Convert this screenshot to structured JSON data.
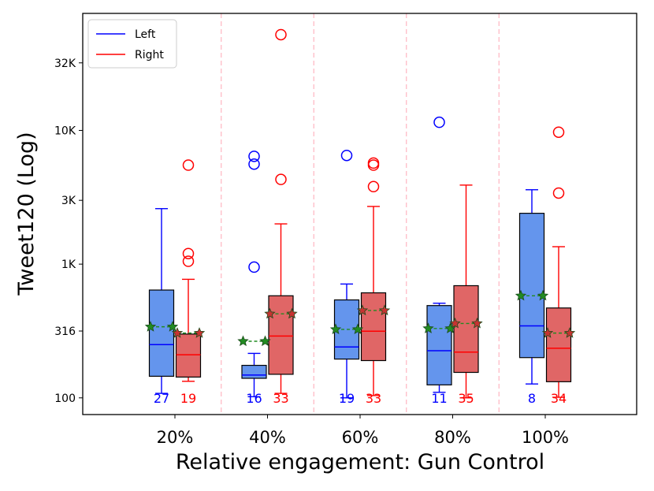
{
  "chart_data": {
    "type": "box",
    "xlabel": "Relative engagement: Gun Control",
    "ylabel": "Tweet120 (Log)",
    "yscale": "log",
    "ylim": [
      75,
      75000
    ],
    "categories": [
      "20%",
      "40%",
      "60%",
      "80%",
      "100%"
    ],
    "y_ticks": [
      {
        "value": 100,
        "label": "100"
      },
      {
        "value": 316,
        "label": "316"
      },
      {
        "value": 1000,
        "label": "1K"
      },
      {
        "value": 3000,
        "label": "3K"
      },
      {
        "value": 10000,
        "label": "10K"
      },
      {
        "value": 32000,
        "label": "32K"
      }
    ],
    "legend": {
      "location": "top-left",
      "entries": [
        {
          "label": "Left",
          "color": "#0000ff"
        },
        {
          "label": "Right",
          "color": "#ff0000"
        }
      ]
    },
    "series": [
      {
        "name": "Left",
        "line_color": "#0000ff",
        "fill_color": "#6495ed",
        "boxes": [
          {
            "category": "20%",
            "whisker_low": 108,
            "q1": 145,
            "median": 250,
            "q3": 640,
            "whisker_high": 2600,
            "mean": 340,
            "outliers": [],
            "count": "27"
          },
          {
            "category": "40%",
            "whisker_low": 102,
            "q1": 140,
            "median": 148,
            "q3": 175,
            "whisker_high": 215,
            "mean": 265,
            "outliers": [
              6400,
              5600,
              950
            ],
            "count": "16"
          },
          {
            "category": "60%",
            "whisker_low": 100,
            "q1": 195,
            "median": 240,
            "q3": 540,
            "whisker_high": 710,
            "mean": 325,
            "outliers": [
              6500
            ],
            "count": "19"
          },
          {
            "category": "80%",
            "whisker_low": 110,
            "q1": 125,
            "median": 225,
            "q3": 490,
            "whisker_high": 510,
            "mean": 330,
            "outliers": [
              11500
            ],
            "count": "11"
          },
          {
            "category": "100%",
            "whisker_low": 127,
            "q1": 200,
            "median": 345,
            "q3": 2400,
            "whisker_high": 3600,
            "mean": 580,
            "outliers": [],
            "count": "8"
          }
        ]
      },
      {
        "name": "Right",
        "line_color": "#ff0000",
        "fill_color": "#e06666",
        "boxes": [
          {
            "category": "20%",
            "whisker_low": 133,
            "q1": 143,
            "median": 210,
            "q3": 300,
            "whisker_high": 770,
            "mean": 305,
            "outliers": [
              5500,
              1200,
              1050
            ],
            "count": "19"
          },
          {
            "category": "40%",
            "whisker_low": 108,
            "q1": 150,
            "median": 290,
            "q3": 580,
            "whisker_high": 2000,
            "mean": 425,
            "outliers": [
              52000,
              4300
            ],
            "count": "33"
          },
          {
            "category": "60%",
            "whisker_low": 104,
            "q1": 190,
            "median": 315,
            "q3": 610,
            "whisker_high": 2700,
            "mean": 450,
            "outliers": [
              5700,
              5500,
              3800
            ],
            "count": "33"
          },
          {
            "category": "80%",
            "whisker_low": 100,
            "q1": 155,
            "median": 220,
            "q3": 690,
            "whisker_high": 3900,
            "mean": 360,
            "outliers": [],
            "count": "35"
          },
          {
            "category": "100%",
            "whisker_low": 101,
            "q1": 132,
            "median": 235,
            "q3": 470,
            "whisker_high": 1350,
            "mean": 305,
            "outliers": [
              9700,
              3400
            ],
            "count": "34"
          }
        ]
      }
    ],
    "mean_marker": {
      "shape": "star",
      "line_style": "dashed",
      "color": "#228b22"
    },
    "separators": {
      "style": "dashed",
      "color": "#ffb6c1"
    }
  }
}
